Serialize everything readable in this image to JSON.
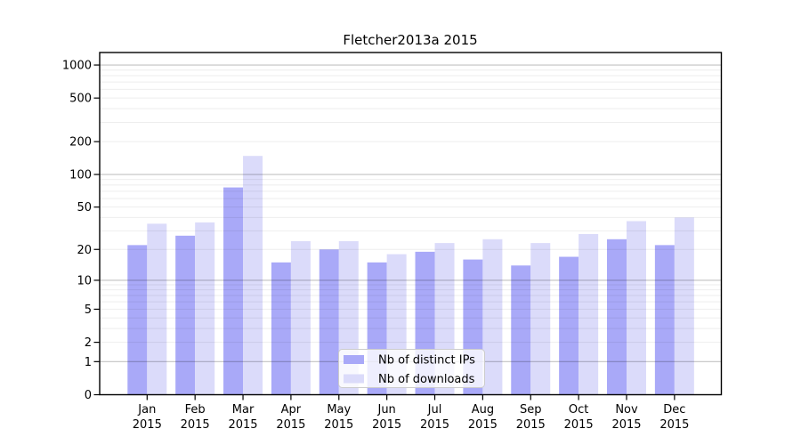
{
  "chart_data": {
    "type": "bar",
    "title": "Fletcher2013a 2015",
    "categories": [
      "Jan",
      "Feb",
      "Mar",
      "Apr",
      "May",
      "Jun",
      "Jul",
      "Aug",
      "Sep",
      "Oct",
      "Nov",
      "Dec"
    ],
    "year_label": "2015",
    "series": [
      {
        "name": "Nb of distinct IPs",
        "color": "#a9a9f8",
        "values": [
          22,
          27,
          76,
          15,
          20,
          15,
          19,
          16,
          14,
          17,
          25,
          22
        ]
      },
      {
        "name": "Nb of downloads",
        "color": "#dbdbfa",
        "values": [
          35,
          36,
          148,
          24,
          24,
          18,
          23,
          25,
          23,
          28,
          37,
          40
        ]
      }
    ],
    "yscale": "symlog",
    "yticks": [
      0,
      1,
      2,
      5,
      10,
      20,
      50,
      100,
      200,
      500,
      1000
    ],
    "major_grid_values": [
      1,
      10,
      100,
      1000
    ],
    "ylim": [
      0,
      1300
    ],
    "grid": true,
    "legend_position": "lower-center",
    "colors": {
      "axis": "#000000",
      "major_grid": "rgba(0,0,0,0.24)",
      "minor_grid": "rgba(0,0,0,0.07)",
      "legend_border": "#cccccc",
      "legend_bg": "rgba(255,255,255,0.8)"
    }
  }
}
